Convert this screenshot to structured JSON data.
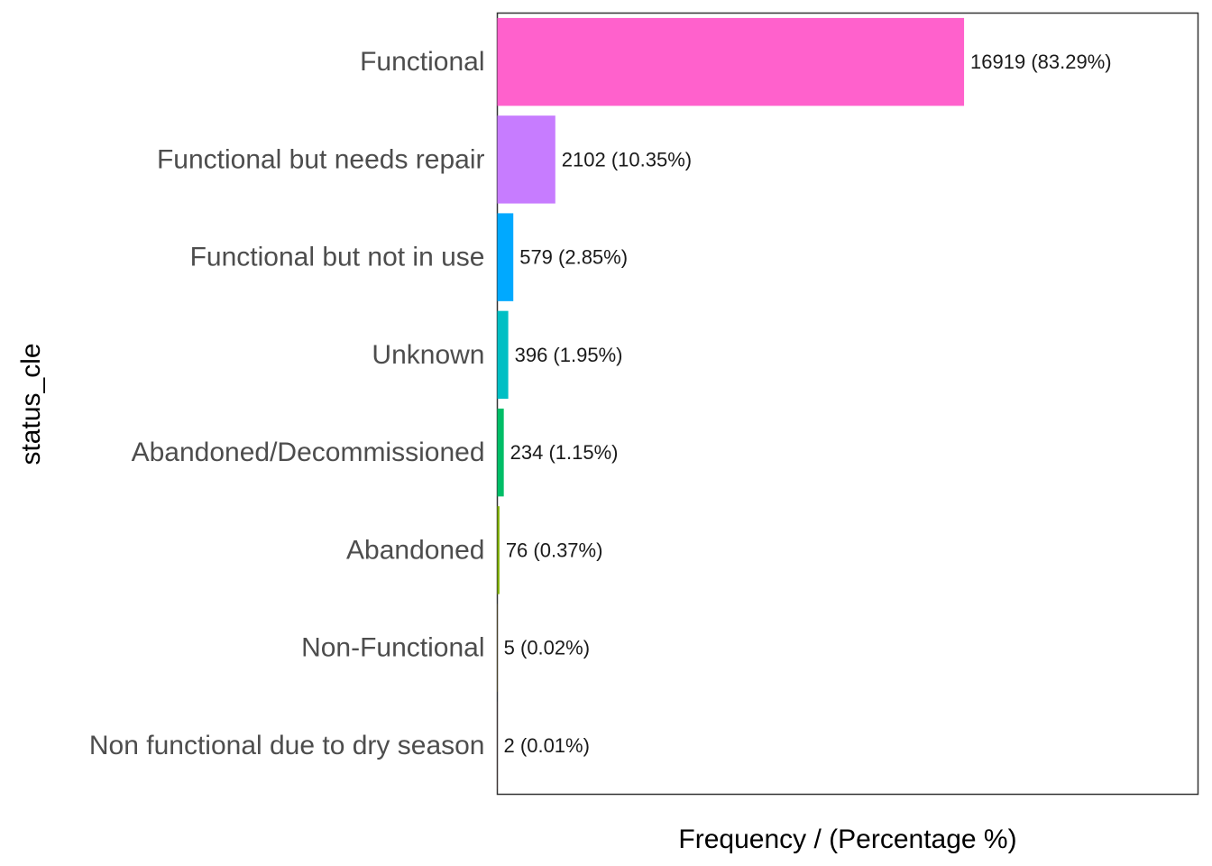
{
  "chart_data": {
    "type": "bar",
    "orientation": "horizontal",
    "title": "",
    "xlabel": "Frequency / (Percentage %)",
    "ylabel": "status_cle",
    "xlim": [
      0,
      25400
    ],
    "grid": false,
    "legend": "none",
    "categories": [
      "Functional",
      "Functional but needs repair",
      "Functional but not in use",
      "Unknown",
      "Abandoned/Decommissioned",
      "Abandoned",
      "Non-Functional",
      "Non functional due to dry season"
    ],
    "values": [
      16919,
      2102,
      579,
      396,
      234,
      76,
      5,
      2
    ],
    "data_labels": [
      "16919 (83.29%)",
      "2102 (10.35%)",
      "579 (2.85%)",
      "396 (1.95%)",
      "234 (1.15%)",
      "76 (0.37%)",
      "5 (0.02%)",
      "2 (0.01%)"
    ],
    "colors": [
      "#FF61CC",
      "#C77CFF",
      "#00A9FF",
      "#00BFC4",
      "#00BE67",
      "#7CAE00",
      "#CD9600",
      "#F8766D"
    ]
  }
}
